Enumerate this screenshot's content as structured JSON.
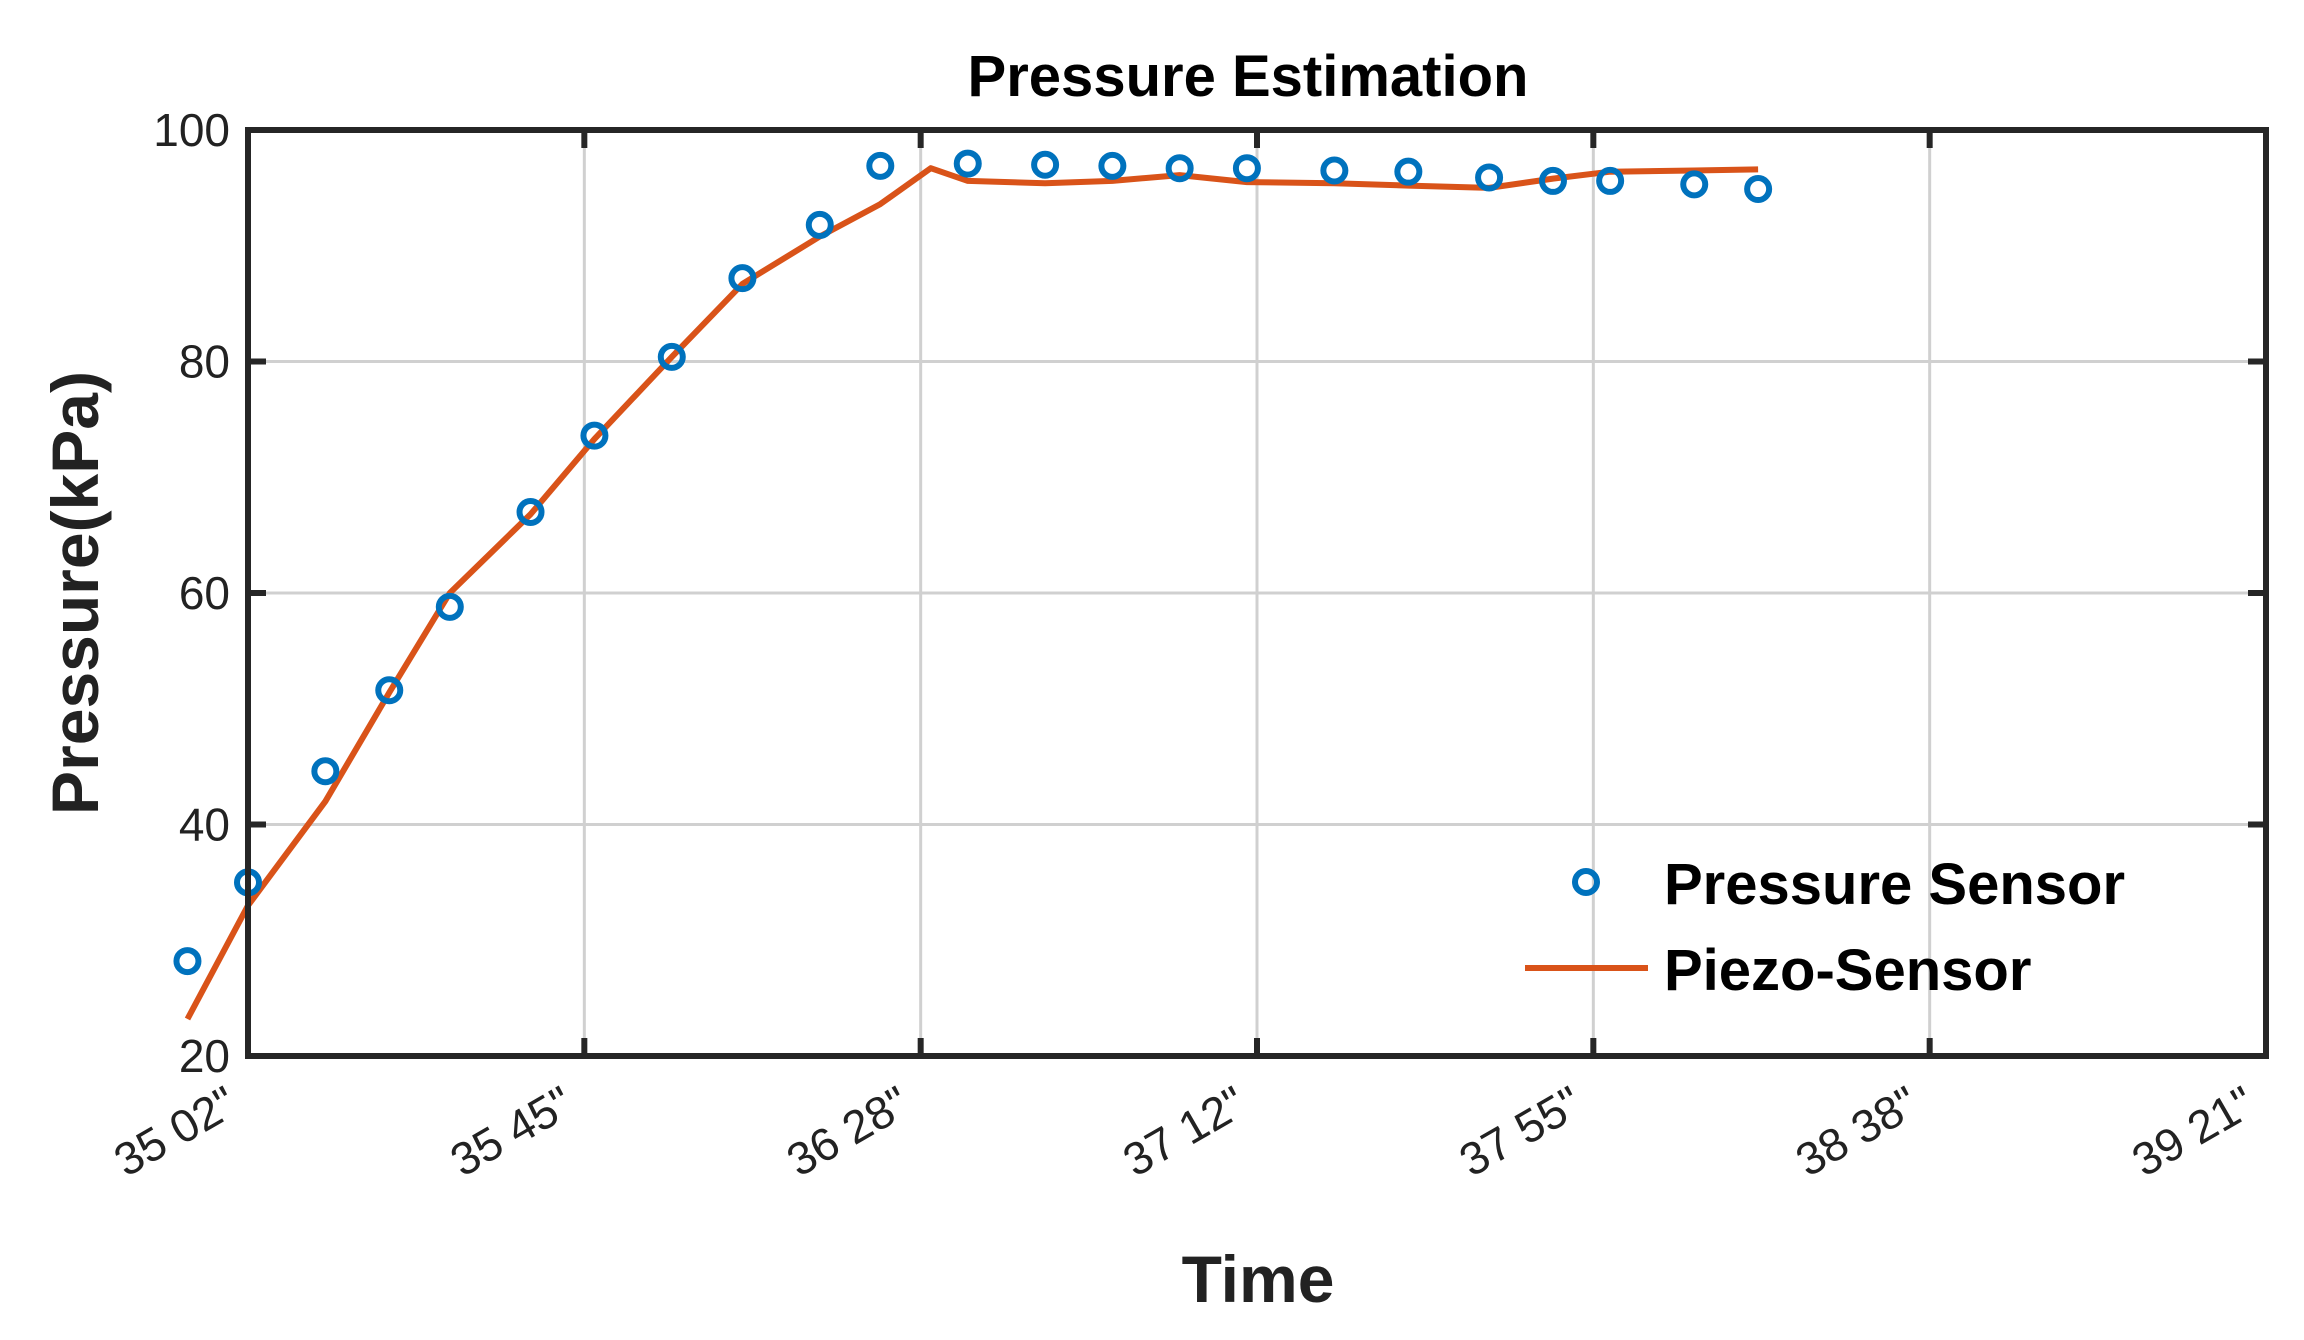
{
  "chart_data": {
    "type": "line",
    "title": "Pressure Estimation",
    "xlabel": "Time",
    "ylabel": "Pressure(kPa)",
    "xlim": [
      0,
      6
    ],
    "ylim": [
      20,
      100
    ],
    "x_tick_labels": [
      "35 02\"",
      "35 45\"",
      "36 28\"",
      "37 12\"",
      "37 55\"",
      "38 38\"",
      "39 21\""
    ],
    "y_ticks": [
      20,
      40,
      60,
      80,
      100
    ],
    "grid": true,
    "legend_position": "bottom-right",
    "colors": {
      "sensor": "#0072BD",
      "piezo": "#D95319",
      "axes": "#262626",
      "grid": "#d0d0d0"
    },
    "series": [
      {
        "name": "Pressure Sensor",
        "style": "markers",
        "x": [
          -0.18,
          0.0,
          0.23,
          0.42,
          0.6,
          0.84,
          1.03,
          1.26,
          1.47,
          1.7,
          1.88,
          2.14,
          2.37,
          2.57,
          2.77,
          2.97,
          3.23,
          3.45,
          3.69,
          3.88,
          4.05,
          4.3,
          4.49
        ],
        "y": [
          28.2,
          35.0,
          44.6,
          51.6,
          58.8,
          67.0,
          73.6,
          80.4,
          87.2,
          91.8,
          96.9,
          97.1,
          97.0,
          96.9,
          96.7,
          96.7,
          96.5,
          96.4,
          95.9,
          95.6,
          95.6,
          95.3,
          94.9
        ]
      },
      {
        "name": "Piezo-Sensor",
        "style": "line",
        "x": [
          -0.18,
          0.0,
          0.23,
          0.42,
          0.6,
          0.84,
          1.03,
          1.26,
          1.47,
          1.7,
          1.88,
          2.03,
          2.14,
          2.37,
          2.57,
          2.77,
          2.97,
          3.23,
          3.45,
          3.69,
          3.88,
          4.05,
          4.3,
          4.49
        ],
        "y": [
          23.2,
          33.0,
          42.0,
          51.4,
          60.0,
          66.8,
          73.3,
          80.4,
          86.7,
          90.8,
          93.6,
          96.7,
          95.6,
          95.4,
          95.6,
          96.1,
          95.5,
          95.4,
          95.2,
          95.0,
          95.8,
          96.4,
          96.5,
          96.6
        ]
      }
    ]
  }
}
